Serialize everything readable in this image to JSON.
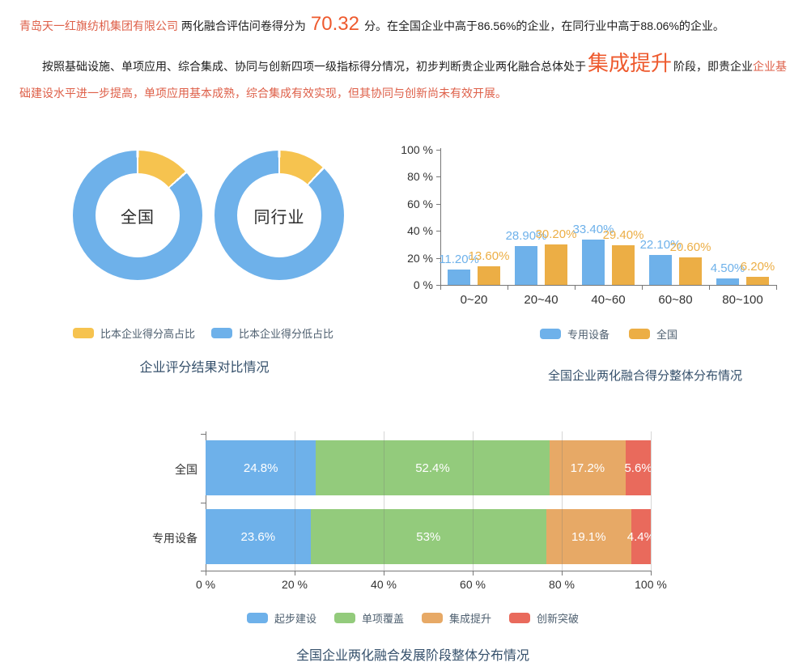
{
  "intro": {
    "company": "青岛天一红旗纺机集团有限公司",
    "before_score": "两化融合评估问卷得分为",
    "score": "70.32",
    "after_score": "分。在全国企业中高于86.56%的企业，在同行业中高于88.06%的企业。",
    "stage_lead": "按照基础设施、单项应用、综合集成、协同与创新四项一级指标得分情况，初步判断贵企业两化融合总体处于",
    "stage": "集成提升",
    "stage_mid": "阶段，即贵企业",
    "stage_tail": "企业基础建设水平进一步提高，单项应用基本成熟，综合集成有效实现，但其协同与创新尚未有效开展。"
  },
  "colors": {
    "accent_red": "#de5f48",
    "accent_big": "#ee5a2e",
    "blue": "#6eb1ea",
    "yellow": "#f6c34f",
    "orange": "#ecae45",
    "green": "#93cb7c",
    "stack_orange": "#e7a966",
    "red": "#e96a5c",
    "title": "#35506b"
  },
  "chart_data": [
    {
      "type": "pie",
      "subtype": "donut-pair",
      "title": "企业评分结果对比情况",
      "legend": [
        {
          "name": "比本企业得分高占比",
          "color": "#f6c34f"
        },
        {
          "name": "比本企业得分低占比",
          "color": "#6eb1ea"
        }
      ],
      "donuts": [
        {
          "label": "全国",
          "higher_pct": 13.44,
          "lower_pct": 86.56
        },
        {
          "label": "同行业",
          "higher_pct": 11.94,
          "lower_pct": 88.06
        }
      ]
    },
    {
      "type": "bar",
      "title": "全国企业两化融合得分整体分布情况",
      "categories": [
        "0~20",
        "20~40",
        "40~60",
        "60~80",
        "80~100"
      ],
      "series": [
        {
          "name": "专用设备",
          "color": "#6eb1ea",
          "values": [
            11.2,
            28.9,
            33.4,
            22.1,
            4.5
          ],
          "labels": [
            "11.20%",
            "28.90%",
            "33.40%",
            "22.10%",
            "4.50%"
          ]
        },
        {
          "name": "全国",
          "color": "#ecae45",
          "values": [
            13.6,
            30.2,
            29.4,
            20.6,
            6.2
          ],
          "labels": [
            "13.60%",
            "30.20%",
            "29.40%",
            "20.60%",
            "6.20%"
          ]
        }
      ],
      "y_ticks": [
        "0 %",
        "20 %",
        "40 %",
        "60 %",
        "80 %",
        "100 %"
      ],
      "ylim": [
        0,
        100
      ],
      "legend_position": "bottom",
      "grid": false
    },
    {
      "type": "bar",
      "subtype": "stacked-horizontal",
      "title": "全国企业两化融合发展阶段整体分布情况",
      "stages": [
        {
          "name": "起步建设",
          "color": "#6eb1ea"
        },
        {
          "name": "单项覆盖",
          "color": "#93cb7c"
        },
        {
          "name": "集成提升",
          "color": "#e7a966"
        },
        {
          "name": "创新突破",
          "color": "#e96a5c"
        }
      ],
      "rows": [
        {
          "label": "全国",
          "values": [
            24.8,
            52.4,
            17.2,
            5.6
          ],
          "labels": [
            "24.8%",
            "52.4%",
            "17.2%",
            "5.6%"
          ]
        },
        {
          "label": "专用设备",
          "values": [
            23.6,
            53.0,
            19.1,
            4.4
          ],
          "labels": [
            "23.6%",
            "53%",
            "19.1%",
            "4.4%"
          ]
        }
      ],
      "x_ticks": [
        "0 %",
        "20 %",
        "40 %",
        "60 %",
        "80 %",
        "100 %"
      ],
      "xlim": [
        0,
        100
      ],
      "grid": true,
      "legend_position": "bottom"
    }
  ]
}
